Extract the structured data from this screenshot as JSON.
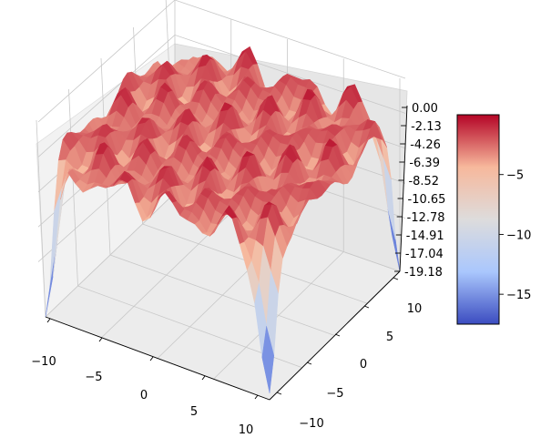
{
  "chart_data": {
    "type": "surface3d",
    "title": "",
    "xlabel": "",
    "ylabel": "",
    "zlabel": "",
    "x_ticks": [
      "−10",
      "−5",
      "0",
      "5",
      "10"
    ],
    "y_ticks": [
      "−10",
      "−5",
      "0",
      "5",
      "10"
    ],
    "z_ticks": [
      "0.00",
      "-2.13",
      "-4.26",
      "-6.39",
      "-8.52",
      "-10.65",
      "-12.78",
      "-14.91",
      "-17.04",
      "-19.18"
    ],
    "xlim": [
      -10,
      10
    ],
    "ylim": [
      -10,
      10
    ],
    "zlim": [
      -19.18,
      0.0
    ],
    "surface_max": 0.0,
    "corner_minimum": -19.18,
    "corners": [
      {
        "x": -10,
        "y": -10,
        "z": -19.18
      },
      {
        "x": -10,
        "y": 10,
        "z": -19.18
      },
      {
        "x": 10,
        "y": -10,
        "z": -19.18
      },
      {
        "x": 10,
        "y": 10,
        "z": -19.18
      }
    ],
    "plateau_level": -2.5,
    "colormap": "coolwarm",
    "colormap_colors": [
      "#3b4cc0",
      "#aac7fd",
      "#dddcdc",
      "#f7b89c",
      "#b40426"
    ],
    "colorbar_ticks": [
      "−5",
      "−10",
      "−15"
    ],
    "colorbar_range": [
      -17.5,
      0.0
    ],
    "grid": true
  }
}
